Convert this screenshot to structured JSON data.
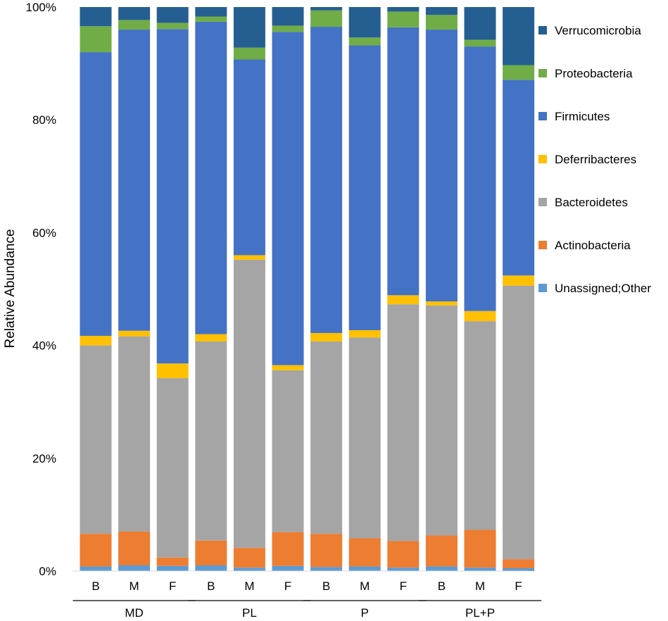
{
  "chart_data": {
    "type": "bar",
    "stacked": true,
    "normalized": true,
    "ylabel": "Relative Abundance",
    "ylim": [
      0,
      100
    ],
    "yticks": [
      "0%",
      "20%",
      "40%",
      "60%",
      "80%",
      "100%"
    ],
    "categories": [
      "B",
      "M",
      "F",
      "B",
      "M",
      "F",
      "B",
      "M",
      "F",
      "B",
      "M",
      "F"
    ],
    "groups": [
      {
        "label": "MD",
        "members": [
          0,
          1,
          2
        ]
      },
      {
        "label": "PL",
        "members": [
          3,
          4,
          5
        ]
      },
      {
        "label": "P",
        "members": [
          6,
          7,
          8
        ]
      },
      {
        "label": "PL+P",
        "members": [
          9,
          10,
          11
        ]
      }
    ],
    "legend_position": "right",
    "series": [
      {
        "name": "Unassigned;Other",
        "color": "#5b9bd5",
        "values": [
          0.8,
          1.0,
          0.9,
          1.0,
          0.6,
          0.9,
          0.7,
          0.8,
          0.6,
          0.8,
          0.6,
          0.5
        ]
      },
      {
        "name": "Actinobacteria",
        "color": "#ed7d31",
        "values": [
          5.8,
          6.0,
          1.5,
          4.4,
          3.5,
          6.0,
          5.9,
          5.0,
          4.7,
          5.5,
          6.7,
          1.6
        ]
      },
      {
        "name": "Bacteroidetes",
        "color": "#a5a5a5",
        "values": [
          33.4,
          34.6,
          31.8,
          35.3,
          51.1,
          28.7,
          34.1,
          35.6,
          42.0,
          40.8,
          37.0,
          48.5
        ]
      },
      {
        "name": "Deferribacteres",
        "color": "#ffc000",
        "values": [
          1.7,
          1.0,
          2.6,
          1.3,
          0.8,
          0.9,
          1.5,
          1.3,
          1.6,
          0.7,
          1.8,
          1.8
        ]
      },
      {
        "name": "Firmicutes",
        "color": "#4472c4",
        "values": [
          50.3,
          53.4,
          59.3,
          55.4,
          34.7,
          59.1,
          54.3,
          50.5,
          47.5,
          48.2,
          46.9,
          34.7
        ]
      },
      {
        "name": "Proteobacteria",
        "color": "#70ad47",
        "values": [
          4.6,
          1.7,
          1.1,
          0.9,
          2.1,
          1.1,
          2.9,
          1.4,
          2.8,
          2.6,
          1.2,
          2.6
        ]
      },
      {
        "name": "Verrucomicrobia",
        "color": "#255e91",
        "values": [
          3.4,
          2.3,
          2.8,
          1.7,
          7.2,
          3.3,
          0.6,
          5.4,
          0.8,
          1.4,
          5.8,
          10.3
        ]
      }
    ]
  }
}
